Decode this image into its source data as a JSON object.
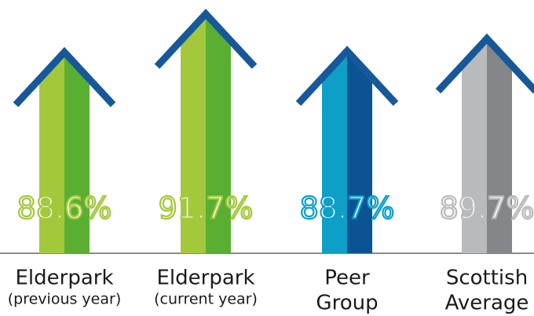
{
  "chart_data": {
    "type": "arrow",
    "categories": [
      [
        "Elderpark",
        "(previous year)"
      ],
      [
        "Elderpark",
        "(current year)"
      ],
      [
        "Peer",
        "Group"
      ],
      [
        "Scottish",
        "Average"
      ]
    ],
    "values": [
      88.6,
      91.7,
      88.7,
      89.7
    ],
    "value_labels": [
      "88.6%",
      "91.7%",
      "88.7%",
      "89.7%"
    ],
    "colors": [
      [
        "#a3c83c",
        "#5aaf32"
      ],
      [
        "#a3c83c",
        "#5aaf32"
      ],
      [
        "#0d9fc8",
        "#0b5494"
      ],
      [
        "#b9babc",
        "#858689"
      ]
    ],
    "arrowhead_color": "#17589a",
    "ylim": [
      72,
      92
    ]
  }
}
